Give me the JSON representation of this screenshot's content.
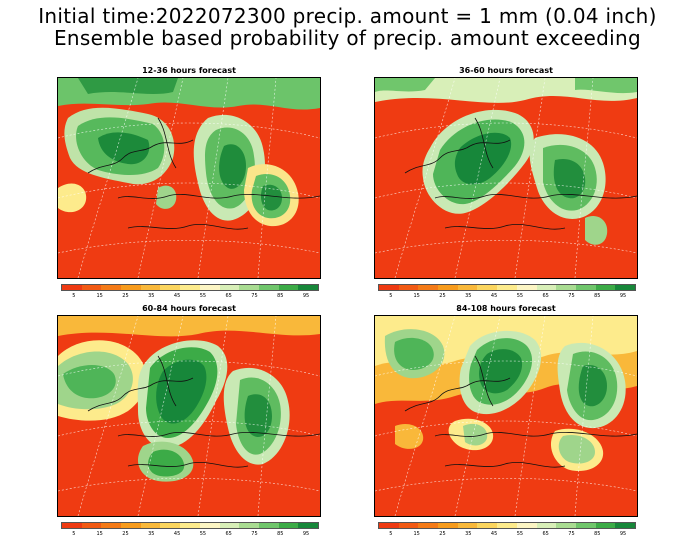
{
  "header": {
    "title_line1": "Initial time:2022072300 precip. amount = 1 mm (0.04 inch)",
    "title_line2": "Ensemble based probability of precip. amount exceeding"
  },
  "panels": [
    {
      "title": "12-36 hours forecast"
    },
    {
      "title": "36-60 hours forecast"
    },
    {
      "title": "60-84 hours forecast"
    },
    {
      "title": "84-108 hours forecast"
    }
  ],
  "colorbar": {
    "colors": [
      "#ee3a12",
      "#f25a14",
      "#f47a17",
      "#f79b1c",
      "#f9b83a",
      "#fbd55e",
      "#fdeb8c",
      "#fcf5c4",
      "#d8efb8",
      "#a9dc92",
      "#70c66c",
      "#3cab47",
      "#17873a"
    ],
    "labels": [
      "5",
      "15",
      "25",
      "35",
      "45",
      "55",
      "65",
      "75",
      "85",
      "95"
    ]
  }
}
